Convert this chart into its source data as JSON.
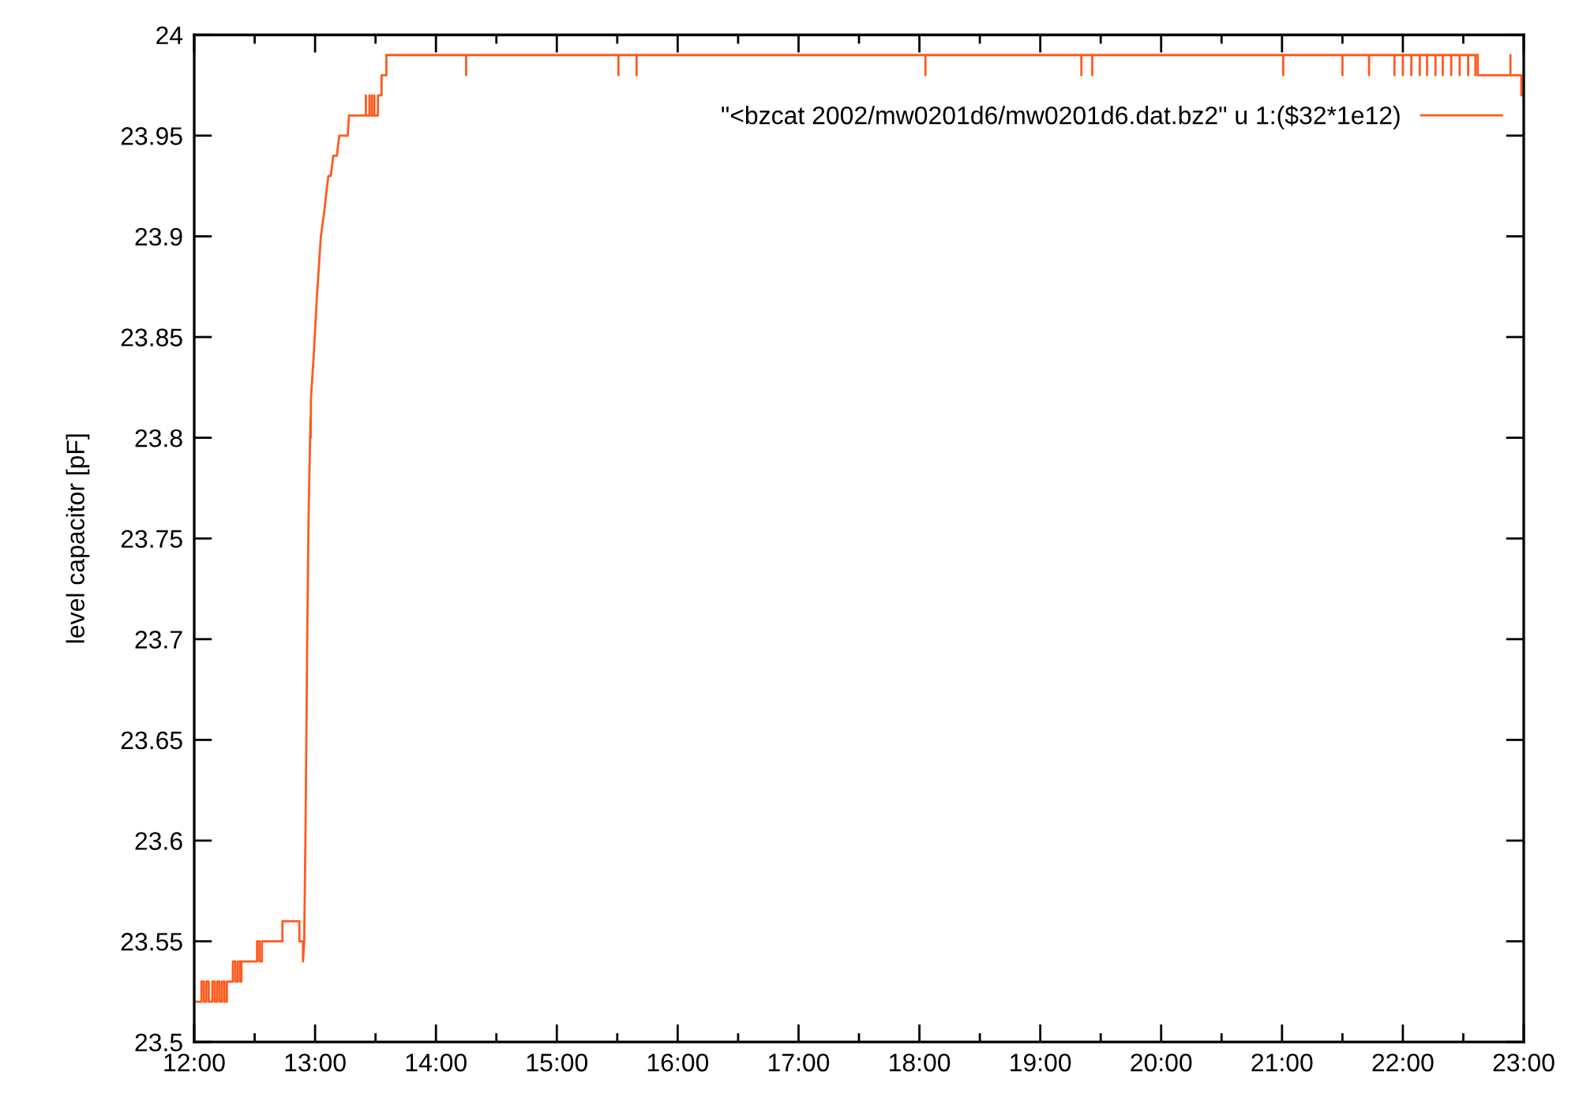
{
  "chart_data": {
    "type": "line",
    "ylabel": "level capacitor [pF]",
    "legend": "top right",
    "xlim": [
      12,
      23
    ],
    "xticks": [
      {
        "value": 12,
        "label": "12:00"
      },
      {
        "value": 12.5,
        "label": null
      },
      {
        "value": 13,
        "label": "13:00"
      },
      {
        "value": 13.5,
        "label": null
      },
      {
        "value": 14,
        "label": "14:00"
      },
      {
        "value": 14.5,
        "label": null
      },
      {
        "value": 15,
        "label": "15:00"
      },
      {
        "value": 15.5,
        "label": null
      },
      {
        "value": 16,
        "label": "16:00"
      },
      {
        "value": 16.5,
        "label": null
      },
      {
        "value": 17,
        "label": "17:00"
      },
      {
        "value": 17.5,
        "label": null
      },
      {
        "value": 18,
        "label": "18:00"
      },
      {
        "value": 18.5,
        "label": null
      },
      {
        "value": 19,
        "label": "19:00"
      },
      {
        "value": 19.5,
        "label": null
      },
      {
        "value": 20,
        "label": "20:00"
      },
      {
        "value": 20.5,
        "label": null
      },
      {
        "value": 21,
        "label": "21:00"
      },
      {
        "value": 21.5,
        "label": null
      },
      {
        "value": 22,
        "label": "22:00"
      },
      {
        "value": 22.5,
        "label": null
      },
      {
        "value": 23,
        "label": "23:00"
      }
    ],
    "ylim": [
      23.5,
      24
    ],
    "yticks": [
      23.5,
      23.55,
      23.6,
      23.65,
      23.7,
      23.75,
      23.8,
      23.85,
      23.9,
      23.95,
      24
    ],
    "series": [
      {
        "name": "\"<bzcat 2002/mw0201d6/mw0201d6.dat.bz2\" u 1:($32*1e12)",
        "color": "#ff5a1e",
        "x": [
          12.0,
          12.06,
          12.06,
          12.08,
          12.08,
          12.1,
          12.1,
          12.12,
          12.12,
          12.15,
          12.15,
          12.17,
          12.17,
          12.19,
          12.19,
          12.21,
          12.21,
          12.23,
          12.23,
          12.25,
          12.25,
          12.27,
          12.27,
          12.32,
          12.32,
          12.34,
          12.34,
          12.36,
          12.36,
          12.38,
          12.38,
          12.39,
          12.39,
          12.52,
          12.52,
          12.54,
          12.54,
          12.56,
          12.56,
          12.73,
          12.73,
          12.87,
          12.87,
          12.9,
          12.9,
          12.91,
          12.92,
          12.935,
          12.946,
          12.962,
          12.964,
          12.966,
          12.988,
          13.015,
          13.048,
          13.071,
          13.09,
          13.11,
          13.13,
          13.15,
          13.18,
          13.2,
          13.27,
          13.28,
          13.42,
          13.42,
          13.42,
          13.45,
          13.45,
          13.45,
          13.47,
          13.47,
          13.47,
          13.49,
          13.49,
          13.49,
          13.52,
          13.52,
          13.55,
          13.55,
          13.59,
          13.59,
          14.25,
          14.25,
          14.25,
          15.51,
          15.51,
          15.51,
          15.66,
          15.66,
          15.66,
          18.05,
          18.05,
          18.05,
          19.34,
          19.34,
          19.34,
          19.43,
          19.43,
          19.43,
          21.01,
          21.01,
          21.01,
          21.5,
          21.5,
          21.5,
          21.72,
          21.72,
          21.72,
          21.93,
          21.93,
          21.93,
          22.0,
          22.0,
          22.0,
          22.07,
          22.07,
          22.07,
          22.14,
          22.14,
          22.14,
          22.2,
          22.2,
          22.2,
          22.27,
          22.27,
          22.27,
          22.33,
          22.33,
          22.33,
          22.4,
          22.4,
          22.4,
          22.47,
          22.47,
          22.47,
          22.54,
          22.54,
          22.54,
          22.6,
          22.6,
          22.6,
          22.62,
          22.62,
          22.89,
          22.89,
          22.89,
          22.98,
          22.98,
          23.0
        ],
        "values": [
          23.52,
          23.52,
          23.53,
          23.53,
          23.52,
          23.52,
          23.53,
          23.53,
          23.52,
          23.52,
          23.53,
          23.53,
          23.52,
          23.52,
          23.53,
          23.53,
          23.52,
          23.52,
          23.53,
          23.53,
          23.52,
          23.52,
          23.53,
          23.53,
          23.54,
          23.54,
          23.53,
          23.53,
          23.54,
          23.54,
          23.53,
          23.53,
          23.54,
          23.54,
          23.55,
          23.55,
          23.54,
          23.54,
          23.55,
          23.55,
          23.56,
          23.56,
          23.55,
          23.55,
          23.54,
          23.55,
          23.6,
          23.7,
          23.76,
          23.81,
          23.8,
          23.82,
          23.84,
          23.87,
          23.9,
          23.91,
          23.92,
          23.93,
          23.93,
          23.94,
          23.94,
          23.95,
          23.95,
          23.96,
          23.96,
          23.97,
          23.96,
          23.96,
          23.97,
          23.96,
          23.96,
          23.97,
          23.96,
          23.96,
          23.97,
          23.96,
          23.96,
          23.97,
          23.97,
          23.98,
          23.98,
          23.99,
          23.99,
          23.98,
          23.99,
          23.99,
          23.98,
          23.99,
          23.99,
          23.98,
          23.99,
          23.99,
          23.98,
          23.99,
          23.99,
          23.98,
          23.99,
          23.99,
          23.98,
          23.99,
          23.99,
          23.98,
          23.99,
          23.99,
          23.98,
          23.99,
          23.99,
          23.98,
          23.99,
          23.99,
          23.98,
          23.99,
          23.99,
          23.98,
          23.99,
          23.99,
          23.98,
          23.99,
          23.99,
          23.98,
          23.99,
          23.99,
          23.98,
          23.99,
          23.99,
          23.98,
          23.99,
          23.99,
          23.98,
          23.99,
          23.99,
          23.98,
          23.99,
          23.99,
          23.98,
          23.99,
          23.99,
          23.98,
          23.99,
          23.99,
          23.98,
          23.99,
          23.99,
          23.98,
          23.98,
          23.99,
          23.98,
          23.98,
          23.97,
          23.97
        ]
      }
    ]
  }
}
